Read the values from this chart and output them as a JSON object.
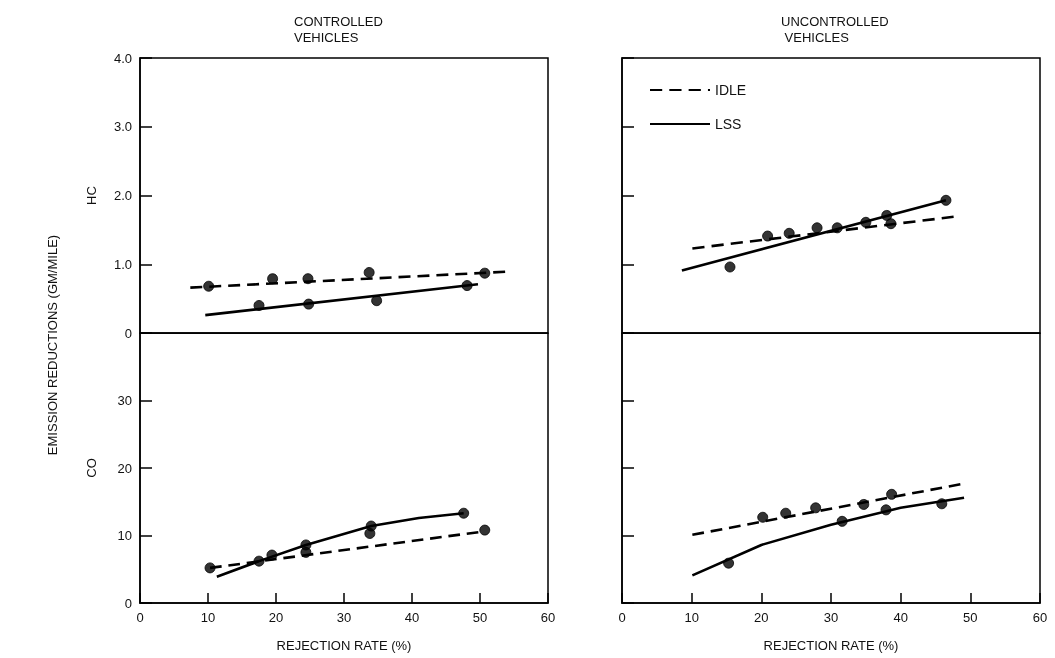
{
  "chart_data": [
    {
      "type": "scatter",
      "title": "CONTROLLED VEHICLES",
      "ylabel": "HC",
      "annotations": [
        "EMISSION REDUCTIONS (GM/MILE)"
      ],
      "xlim": [
        0,
        60
      ],
      "ylim": [
        0,
        4
      ],
      "yticks": [
        0,
        {
          "value": 1,
          "label": "1.0"
        },
        {
          "value": 2,
          "label": "2.0"
        },
        {
          "value": 3,
          "label": "3.0"
        },
        {
          "value": 4,
          "label": "4.0"
        }
      ],
      "tick_labels": "y",
      "grid": false,
      "legend": false,
      "series": [
        {
          "type": "scatter",
          "marker": "circle",
          "color": "#000000",
          "x": [
            10.1,
            19.5,
            24.7,
            33.7,
            50.7
          ],
          "values": [
            0.68,
            0.79,
            0.79,
            0.88,
            0.87
          ]
        },
        {
          "type": "scatter",
          "marker": "circle",
          "color": "#000000",
          "x": [
            17.5,
            24.8,
            34.8,
            48.1
          ],
          "values": [
            0.4,
            0.42,
            0.47,
            0.69
          ]
        },
        {
          "type": "line",
          "marker": "none",
          "line_style": "dashed",
          "color": "#000000",
          "x": [
            7.4,
            53.7
          ],
          "values": [
            0.66,
            0.89
          ]
        },
        {
          "type": "line",
          "marker": "none",
          "line_style": "solid",
          "color": "#000000",
          "x": [
            9.6,
            49.7
          ],
          "values": [
            0.26,
            0.71
          ]
        }
      ]
    },
    {
      "type": "scatter",
      "title": "UNCONTROLLED VEHICLES",
      "xlim": [
        0,
        60
      ],
      "ylim": [
        0,
        4
      ],
      "yticks": [
        0,
        1,
        2,
        3,
        4
      ],
      "tick_labels": false,
      "grid": false,
      "legend": "top left",
      "series": [
        {
          "type": "scatter",
          "marker": "circle",
          "color": "#000000",
          "x": [
            20.9,
            24.0,
            28.0,
            35.0,
            38.6
          ],
          "values": [
            1.41,
            1.45,
            1.53,
            1.61,
            1.59
          ]
        },
        {
          "type": "scatter",
          "marker": "circle",
          "color": "#000000",
          "x": [
            15.5,
            30.9,
            38.0,
            46.5
          ],
          "values": [
            0.96,
            1.53,
            1.71,
            1.93
          ]
        },
        {
          "type": "line",
          "name": "IDLE",
          "marker": "none",
          "line_style": "dashed",
          "color": "#000000",
          "x": [
            10.1,
            47.6
          ],
          "values": [
            1.23,
            1.69
          ]
        },
        {
          "type": "line",
          "name": "LSS",
          "marker": "none",
          "line_style": "solid",
          "color": "#000000",
          "x": [
            8.6,
            46.5
          ],
          "values": [
            0.91,
            1.93
          ]
        }
      ]
    },
    {
      "type": "scatter",
      "ylabel": "CO",
      "xlabel": "REJECTION RATE (%)",
      "xlim": [
        0,
        60
      ],
      "ylim": [
        0,
        40
      ],
      "xticks": [
        0,
        10,
        20,
        30,
        40,
        50,
        60
      ],
      "yticks": [
        0,
        10,
        20,
        30
      ],
      "grid": false,
      "legend": false,
      "series": [
        {
          "type": "scatter",
          "marker": "circle",
          "color": "#000000",
          "x": [
            10.3,
            19.4,
            24.4,
            33.8,
            50.7
          ],
          "values": [
            5.2,
            7.1,
            7.5,
            10.3,
            10.8
          ]
        },
        {
          "type": "scatter",
          "marker": "circle",
          "color": "#000000",
          "x": [
            17.5,
            24.4,
            34.0,
            47.6
          ],
          "values": [
            6.2,
            8.6,
            11.4,
            13.3
          ]
        },
        {
          "type": "line",
          "marker": "none",
          "line_style": "dashed",
          "color": "#000000",
          "x": [
            10.3,
            49.8
          ],
          "values": [
            5.2,
            10.5
          ]
        },
        {
          "type": "line",
          "marker": "none",
          "line_style": "solid",
          "color": "#000000",
          "x": [
            11.3,
            17.5,
            24.4,
            34.0,
            41.0,
            47.6
          ],
          "values": [
            3.9,
            6.2,
            8.6,
            11.4,
            12.6,
            13.3
          ]
        }
      ]
    },
    {
      "type": "scatter",
      "xlabel": "REJECTION RATE (%)",
      "xlim": [
        0,
        60
      ],
      "ylim": [
        0,
        40
      ],
      "xticks": [
        0,
        10,
        20,
        30,
        40,
        50,
        60
      ],
      "yticks": [
        0,
        10,
        20,
        30
      ],
      "tick_labels": "x",
      "grid": false,
      "legend": false,
      "series": [
        {
          "type": "scatter",
          "marker": "circle",
          "color": "#000000",
          "x": [
            20.2,
            23.5,
            27.8,
            34.7,
            38.7
          ],
          "values": [
            12.7,
            13.3,
            14.1,
            14.6,
            16.1
          ]
        },
        {
          "type": "scatter",
          "marker": "circle",
          "color": "#000000",
          "x": [
            15.3,
            31.6,
            37.9,
            45.9
          ],
          "values": [
            5.9,
            12.1,
            13.8,
            14.7
          ]
        },
        {
          "type": "line",
          "marker": "none",
          "line_style": "dashed",
          "color": "#000000",
          "x": [
            10.1,
            48.6
          ],
          "values": [
            10.1,
            17.6
          ]
        },
        {
          "type": "line",
          "marker": "none",
          "line_style": "solid",
          "color": "#000000",
          "x": [
            10.1,
            20.0,
            30.0,
            40.0,
            49.1
          ],
          "values": [
            4.1,
            8.6,
            11.6,
            14.1,
            15.6
          ]
        }
      ]
    }
  ]
}
